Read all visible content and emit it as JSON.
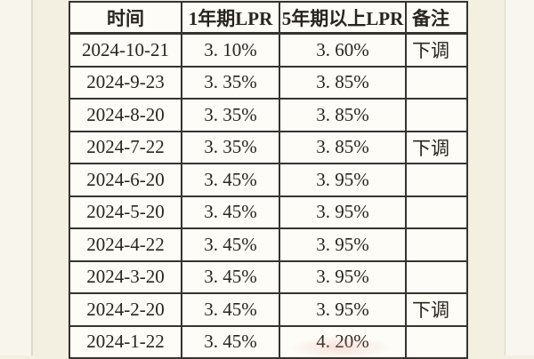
{
  "colors": {
    "page_background": "#f3f0e2",
    "cell_background": "#fdfcf6",
    "border": "#37332e",
    "text": "#29241e",
    "highlight_red": "#c8372e"
  },
  "table": {
    "columns": [
      {
        "key": "date",
        "label": "时间"
      },
      {
        "key": "lpr_1y",
        "label": "1年期LPR"
      },
      {
        "key": "lpr_5y",
        "label": "5年期以上LPR"
      },
      {
        "key": "note",
        "label": "备注"
      }
    ],
    "rows": [
      {
        "date": "2024-10-21",
        "lpr_1y": "3. 10%",
        "lpr_5y": "3. 60%",
        "note": "下调",
        "lpr_1y_highlight": true,
        "lpr_5y_highlight": true
      },
      {
        "date": "2024-9-23",
        "lpr_1y": "3. 35%",
        "lpr_5y": "3. 85%",
        "note": "",
        "lpr_1y_highlight": false,
        "lpr_5y_highlight": false
      },
      {
        "date": "2024-8-20",
        "lpr_1y": "3. 35%",
        "lpr_5y": "3. 85%",
        "note": "",
        "lpr_1y_highlight": false,
        "lpr_5y_highlight": false
      },
      {
        "date": "2024-7-22",
        "lpr_1y": "3. 35%",
        "lpr_5y": "3. 85%",
        "note": "下调",
        "lpr_1y_highlight": true,
        "lpr_5y_highlight": true
      },
      {
        "date": "2024-6-20",
        "lpr_1y": "3. 45%",
        "lpr_5y": "3. 95%",
        "note": "",
        "lpr_1y_highlight": false,
        "lpr_5y_highlight": false
      },
      {
        "date": "2024-5-20",
        "lpr_1y": "3. 45%",
        "lpr_5y": "3. 95%",
        "note": "",
        "lpr_1y_highlight": false,
        "lpr_5y_highlight": false
      },
      {
        "date": "2024-4-22",
        "lpr_1y": "3. 45%",
        "lpr_5y": "3. 95%",
        "note": "",
        "lpr_1y_highlight": false,
        "lpr_5y_highlight": false
      },
      {
        "date": "2024-3-20",
        "lpr_1y": "3. 45%",
        "lpr_5y": "3. 95%",
        "note": "",
        "lpr_1y_highlight": false,
        "lpr_5y_highlight": false
      },
      {
        "date": "2024-2-20",
        "lpr_1y": "3. 45%",
        "lpr_5y": "3. 95%",
        "note": "下调",
        "lpr_1y_highlight": false,
        "lpr_5y_highlight": true
      },
      {
        "date": "2024-1-22",
        "lpr_1y": "3. 45%",
        "lpr_5y": "4. 20%",
        "note": "",
        "lpr_1y_highlight": false,
        "lpr_5y_highlight": false
      }
    ]
  },
  "chart_data": {
    "type": "table",
    "title": "",
    "columns": [
      "时间",
      "1年期LPR",
      "5年期以上LPR",
      "备注"
    ],
    "rows": [
      [
        "2024-10-21",
        "3.10%",
        "3.60%",
        "下调"
      ],
      [
        "2024-9-23",
        "3.35%",
        "3.85%",
        ""
      ],
      [
        "2024-8-20",
        "3.35%",
        "3.85%",
        ""
      ],
      [
        "2024-7-22",
        "3.35%",
        "3.85%",
        "下调"
      ],
      [
        "2024-6-20",
        "3.45%",
        "3.95%",
        ""
      ],
      [
        "2024-5-20",
        "3.45%",
        "3.95%",
        ""
      ],
      [
        "2024-4-22",
        "3.45%",
        "3.95%",
        ""
      ],
      [
        "2024-3-20",
        "3.45%",
        "3.95%",
        ""
      ],
      [
        "2024-2-20",
        "3.45%",
        "3.95%",
        "下调"
      ],
      [
        "2024-1-22",
        "3.45%",
        "4.20%",
        ""
      ]
    ],
    "highlighted_cells_row_col": [
      [
        0,
        1
      ],
      [
        0,
        2
      ],
      [
        3,
        1
      ],
      [
        3,
        2
      ],
      [
        8,
        2
      ]
    ],
    "highlight_color": "#c8372e",
    "highlight_meaning": "下调"
  }
}
